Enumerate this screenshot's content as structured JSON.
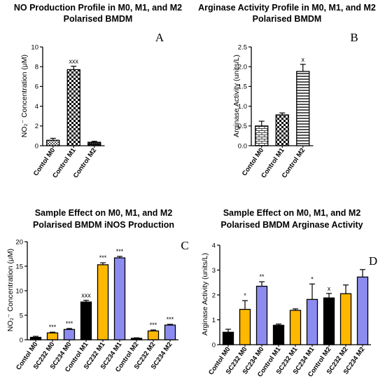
{
  "chart_data": [
    {
      "type": "bar",
      "title": [
        "NO Production Profile in M0, M1, and M2",
        "Polarised BMDM"
      ],
      "panel": "A",
      "ylabel": "NO₂⁻ Concentration (μM)",
      "ylim": [
        0,
        10
      ],
      "yticks": [
        0,
        2,
        4,
        6,
        8,
        10
      ],
      "categories": [
        "Contol M0",
        "Control M1",
        "Control M2"
      ],
      "values": [
        0.55,
        7.7,
        0.35
      ],
      "errors": [
        0.2,
        0.35,
        0.1
      ],
      "fills": [
        "checker-fine",
        "checker",
        "black-dots"
      ],
      "annotations": [
        "",
        "xxx",
        ""
      ]
    },
    {
      "type": "bar",
      "title": [
        "Arginase Activity Profile in M0, M1, and M2",
        "Polarised BMDM"
      ],
      "panel": "B",
      "ylabel": "Arginase Activity (units/L)",
      "ylim": [
        0,
        2.5
      ],
      "yticks": [
        0.0,
        0.5,
        1.0,
        1.5,
        2.0,
        2.5
      ],
      "categories": [
        "Contol M0",
        "Control M1",
        "Control M2"
      ],
      "values": [
        0.5,
        0.78,
        1.88
      ],
      "errors": [
        0.12,
        0.05,
        0.18
      ],
      "fills": [
        "brick",
        "checker",
        "hstripes"
      ],
      "annotations": [
        "",
        "",
        "x"
      ]
    },
    {
      "type": "bar",
      "title": [
        "Sample Effect on M0, M1, and M2",
        "Polarised BMDM iNOS Production"
      ],
      "panel": "C",
      "ylabel": "NO₂⁻ Concentration (μM)",
      "ylim": [
        0,
        20
      ],
      "yticks": [
        0,
        5,
        10,
        15,
        20
      ],
      "categories": [
        "Contol M0",
        "SC232 M0",
        "SC234 M0",
        "Control M1",
        "SC232 M1",
        "SC234 M1",
        "Control M2",
        "SC232 M2",
        "SC234 M2"
      ],
      "values": [
        0.5,
        1.4,
        2.1,
        7.7,
        15.3,
        16.7,
        0.3,
        1.8,
        3.0
      ],
      "errors": [
        0.2,
        0.15,
        0.2,
        0.35,
        0.4,
        0.3,
        0.1,
        0.2,
        0.15
      ],
      "fills": [
        "#000000",
        "#FFB800",
        "#8C8CF0",
        "#000000",
        "#FFB800",
        "#8C8CF0",
        "#000000",
        "#FFB800",
        "#8C8CF0"
      ],
      "annotations": [
        "",
        "***",
        "***",
        "xxx",
        "***",
        "***",
        "",
        "***",
        "***"
      ]
    },
    {
      "type": "bar",
      "title": [
        "Sample Effect on M0, M1, and M2",
        "Polarised BMDM Arginase Activity"
      ],
      "panel": "D",
      "ylabel": "Arginase Activity (units/L)",
      "ylim": [
        0,
        4
      ],
      "yticks": [
        0,
        1,
        2,
        3,
        4
      ],
      "categories": [
        "Contol M0",
        "SC232 M0",
        "SC234 M0",
        "Control M1",
        "SC232 M1",
        "SC234 M1",
        "Control M2",
        "SC232 M2",
        "SC234 M2"
      ],
      "values": [
        0.5,
        1.42,
        2.35,
        0.78,
        1.38,
        1.82,
        1.88,
        2.05,
        2.72
      ],
      "errors": [
        0.12,
        0.35,
        0.18,
        0.05,
        0.06,
        0.62,
        0.18,
        0.35,
        0.3
      ],
      "fills": [
        "#000000",
        "#FFB800",
        "#8C8CF0",
        "#000000",
        "#FFB800",
        "#8C8CF0",
        "#000000",
        "#FFB800",
        "#8C8CF0"
      ],
      "annotations": [
        "",
        "*",
        "**",
        "",
        "",
        "*",
        "x",
        "",
        ""
      ]
    }
  ]
}
